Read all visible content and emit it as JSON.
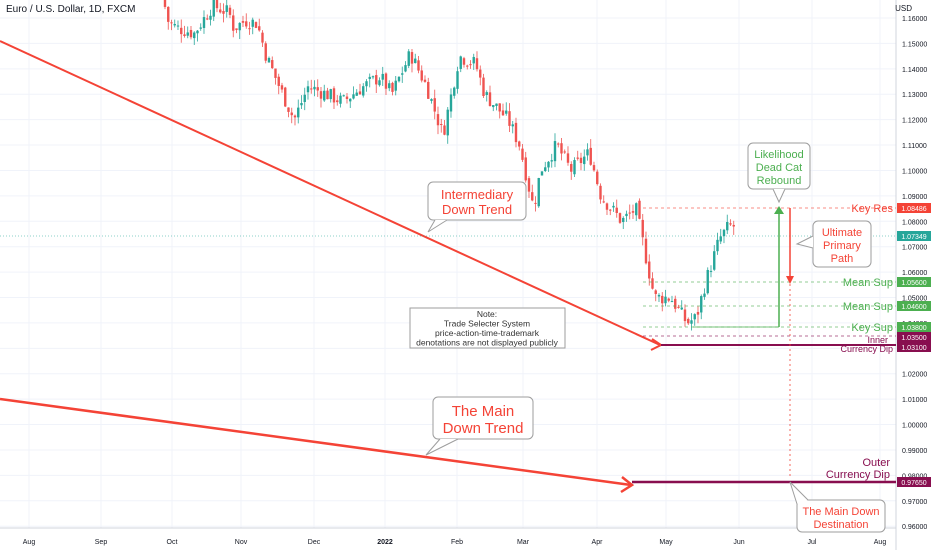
{
  "header": {
    "title": "Euro / U.S. Dollar, 1D, FXCM",
    "unit": "USD"
  },
  "colors": {
    "up": "#26a69a",
    "down": "#ef5350",
    "green": "#4caf50",
    "red": "#f44336",
    "purple": "#880e4f",
    "teal": "#26a69a",
    "grid": "#f0f3fa"
  },
  "chart_data": {
    "type": "candlestick",
    "title": "Euro / U.S. Dollar, 1D, FXCM",
    "ylabel": "USD",
    "x_ticks": [
      "Aug",
      "Sep",
      "Oct",
      "Nov",
      "Dec",
      "2022",
      "Feb",
      "Mar",
      "Apr",
      "May",
      "Jun",
      "Jul",
      "Aug"
    ],
    "y_ticks": [
      "1.16000",
      "1.15000",
      "1.14000",
      "1.13000",
      "1.12000",
      "1.11000",
      "1.10000",
      "1.09000",
      "1.08000",
      "1.07000",
      "1.06000",
      "1.05000",
      "1.04000",
      "1.03000",
      "1.02000",
      "1.01000",
      "1.00000",
      "0.99000",
      "0.98000",
      "0.97000",
      "0.96000"
    ],
    "ylim": [
      0.954,
      1.165
    ],
    "price_path": [
      [
        "2021-09-28",
        1.17
      ],
      [
        "2021-10-01",
        1.158
      ],
      [
        "2021-10-05",
        1.156
      ],
      [
        "2021-10-12",
        1.154
      ],
      [
        "2021-10-20",
        1.165
      ],
      [
        "2021-10-27",
        1.162
      ],
      [
        "2021-10-29",
        1.156
      ],
      [
        "2021-11-03",
        1.159
      ],
      [
        "2021-11-08",
        1.158
      ],
      [
        "2021-11-12",
        1.145
      ],
      [
        "2021-11-19",
        1.13
      ],
      [
        "2021-11-24",
        1.12
      ],
      [
        "2021-11-30",
        1.133
      ],
      [
        "2021-12-08",
        1.13
      ],
      [
        "2021-12-15",
        1.127
      ],
      [
        "2021-12-22",
        1.132
      ],
      [
        "2021-12-31",
        1.137
      ],
      [
        "2022-01-05",
        1.13
      ],
      [
        "2022-01-13",
        1.146
      ],
      [
        "2022-01-20",
        1.133
      ],
      [
        "2022-01-27",
        1.114
      ],
      [
        "2022-02-03",
        1.145
      ],
      [
        "2022-02-10",
        1.142
      ],
      [
        "2022-02-14",
        1.13
      ],
      [
        "2022-02-24",
        1.12
      ],
      [
        "2022-03-01",
        1.11
      ],
      [
        "2022-03-07",
        1.085
      ],
      [
        "2022-03-10",
        1.1
      ],
      [
        "2022-03-17",
        1.11
      ],
      [
        "2022-03-23",
        1.1
      ],
      [
        "2022-03-31",
        1.107
      ],
      [
        "2022-04-05",
        1.09
      ],
      [
        "2022-04-14",
        1.08
      ],
      [
        "2022-04-20",
        1.085
      ],
      [
        "2022-04-28",
        1.05
      ],
      [
        "2022-05-05",
        1.05
      ],
      [
        "2022-05-12",
        1.04
      ],
      [
        "2022-05-16",
        1.042
      ],
      [
        "2022-05-20",
        1.056
      ],
      [
        "2022-05-26",
        1.073
      ],
      [
        "2022-05-30",
        1.078
      ]
    ],
    "last_price": "1.07349",
    "levels": [
      {
        "label": "Key Res",
        "value": "1.08486",
        "color": "#f44336"
      },
      {
        "label": "Mean Sup",
        "value": "1.05600",
        "color": "#4caf50"
      },
      {
        "label": "Mean Sup",
        "value": "1.04600",
        "color": "#4caf50"
      },
      {
        "label": "Key Sup",
        "value": "1.03800",
        "color": "#4caf50"
      },
      {
        "label": "Inner",
        "value": "1.03500",
        "color": "#880e4f"
      },
      {
        "label": "Currency Dip",
        "value": "1.03100",
        "color": "#880e4f"
      },
      {
        "label": "Outer Currency Dip",
        "value": "0.97650",
        "color": "#880e4f"
      }
    ],
    "annotations": {
      "intermediary": "Intermediary\nDown Trend",
      "main": "The Main\nDown Trend",
      "likelihood": "Likelihood\nDead Cat\nRebound",
      "ultimate": "Ultimate\nPrimary\nPath",
      "destination": "The Main Down\nDestination",
      "note": "Note:\nTrade Selecter System\nprice-action-time-trademark\ndenotations are not displayed publicly",
      "outer": "Outer\nCurrency Dip"
    }
  }
}
